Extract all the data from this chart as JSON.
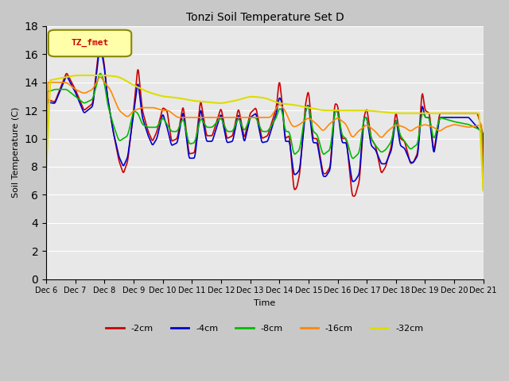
{
  "title": "Tonzi Soil Temperature Set D",
  "xlabel": "Time",
  "ylabel": "Soil Temperature (C)",
  "ylim": [
    0,
    18
  ],
  "yticks": [
    0,
    2,
    4,
    6,
    8,
    10,
    12,
    14,
    16,
    18
  ],
  "legend_label": "TZ_fmet",
  "series": {
    "-2cm": {
      "color": "#cc0000",
      "linewidth": 1.2
    },
    "-4cm": {
      "color": "#0000cc",
      "linewidth": 1.2
    },
    "-8cm": {
      "color": "#00bb00",
      "linewidth": 1.2
    },
    "-16cm": {
      "color": "#ff8800",
      "linewidth": 1.2
    },
    "-32cm": {
      "color": "#dddd00",
      "linewidth": 1.5
    }
  },
  "fig_bg": "#c8c8c8",
  "plot_bg": "#e8e8e8",
  "grid_color": "#ffffff",
  "n_points": 720,
  "x_start": 6,
  "x_end": 21,
  "xtick_labels": [
    "Dec 6",
    "Dec 7",
    "Dec 8",
    "Dec 9",
    "Dec 10",
    "Dec 11",
    "Dec 12",
    "Dec 13",
    "Dec 14",
    "Dec 15",
    "Dec 16",
    "Dec 17",
    "Dec 18",
    "Dec 19",
    "Dec 20",
    "Dec 21"
  ],
  "xtick_positions": [
    6,
    7,
    8,
    9,
    10,
    11,
    12,
    13,
    14,
    15,
    16,
    17,
    18,
    19,
    20,
    21
  ],
  "tzfmet_box_color": "#ffffaa",
  "tzfmet_edge_color": "#888800",
  "tzfmet_text_color": "#cc0000"
}
